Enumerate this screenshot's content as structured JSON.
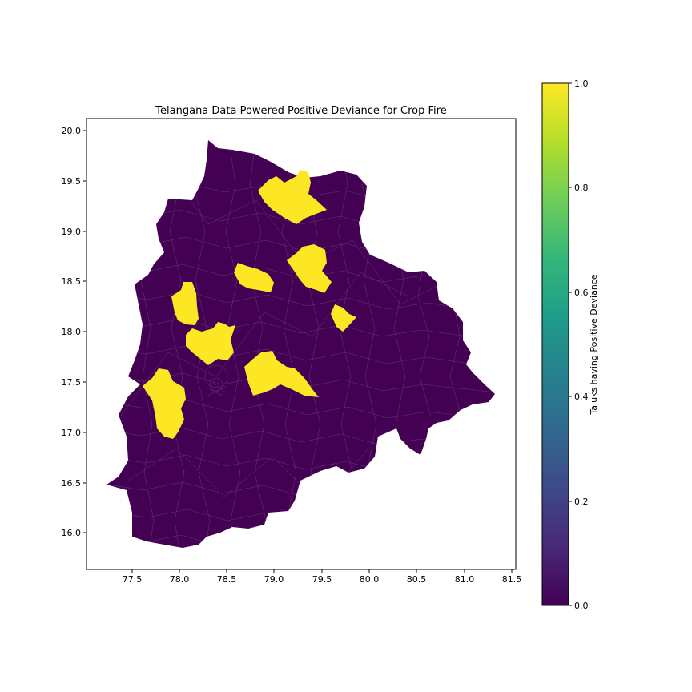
{
  "map": {
    "title": "Telangana Data Powered Positive Deviance for Crop Fire",
    "x_ticks": [
      "77.5",
      "78.0",
      "78.5",
      "79.0",
      "79.5",
      "80.0",
      "80.5",
      "81.0",
      "81.5"
    ],
    "y_ticks": [
      "20.0",
      "19.5",
      "19.0",
      "18.5",
      "18.0",
      "17.5",
      "17.0",
      "16.5",
      "16.0"
    ],
    "fill_low": "#440154",
    "fill_high": "#fde725",
    "boundary_color": "#7a5f96"
  },
  "colorbar": {
    "label": "Taluks having Positive Deviance",
    "ticks": [
      "1.0",
      "0.8",
      "0.6",
      "0.4",
      "0.2",
      "0.0"
    ],
    "stops": [
      "#fde725",
      "#b5de2b",
      "#6ece58",
      "#35b779",
      "#1f9e89",
      "#26828e",
      "#31688e",
      "#3e4989",
      "#482878",
      "#440154"
    ]
  }
}
